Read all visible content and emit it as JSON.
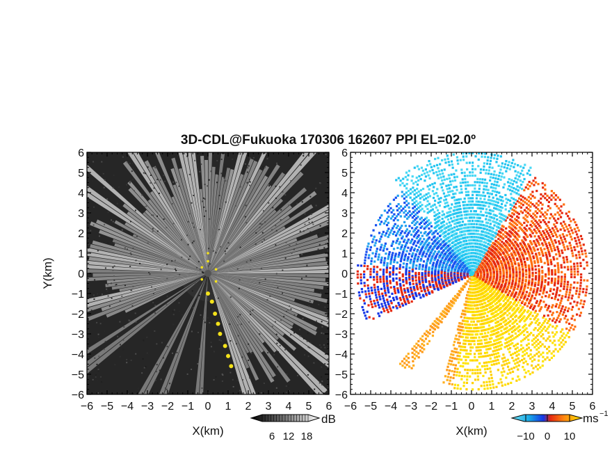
{
  "chart_data": [
    {
      "type": "heatmap",
      "panel": "left",
      "variable": "signal intensity (grayscale)",
      "title": "3D-CDL@Fukuoka 170306 162607 PPI EL=02.0º",
      "xlabel": "X(km)",
      "ylabel": "Y(km)",
      "xlim": [
        -6,
        6
      ],
      "ylim": [
        -6,
        6
      ],
      "xticks": [
        "−6",
        "−5",
        "−4",
        "−3",
        "−2",
        "−1",
        "0",
        "1",
        "2",
        "3",
        "4",
        "5",
        "6"
      ],
      "yticks": [
        "6",
        "5",
        "4",
        "3",
        "2",
        "1",
        "0",
        "−1",
        "−2",
        "−3",
        "−4",
        "−5",
        "−6"
      ],
      "colorbar": {
        "unit": "dB",
        "ticks": [
          6,
          12,
          18
        ],
        "range": [
          0,
          24
        ],
        "colormap": "grayscale"
      },
      "highlight_color": "#f4e21a",
      "radar_origin": [
        0,
        0
      ]
    },
    {
      "type": "heatmap",
      "panel": "right",
      "variable": "Doppler velocity",
      "xlabel": "X(km)",
      "xlim": [
        -6,
        6
      ],
      "ylim": [
        -6,
        6
      ],
      "xticks": [
        "−6",
        "−5",
        "−4",
        "−3",
        "−2",
        "−1",
        "0",
        "1",
        "2",
        "3",
        "4",
        "5",
        "6"
      ],
      "yticks": [
        "6",
        "5",
        "4",
        "3",
        "2",
        "1",
        "0",
        "−1",
        "−2",
        "−3",
        "−4",
        "−5",
        "−6"
      ],
      "colorbar": {
        "unit": "ms⁻¹",
        "ticks": [
          -10,
          0,
          10
        ],
        "range": [
          -15,
          15
        ],
        "colormap": "cyan-blue-red-orange-yellow"
      },
      "radar_origin": [
        0,
        0
      ]
    }
  ],
  "labels": {
    "title": "3D-CDL@Fukuoka 170306 162607 PPI EL=02.0º",
    "ylabel": "Y(km)",
    "xlabel_left": "X(km)",
    "xlabel_right": "X(km)",
    "cb_left_unit": "dB",
    "cb_left_t1": "6",
    "cb_left_t2": "12",
    "cb_left_t3": "18",
    "cb_right_unit_base": "ms",
    "cb_right_unit_exp": "−1",
    "cb_right_t1": "−10",
    "cb_right_t2": "0",
    "cb_right_t3": "10"
  }
}
